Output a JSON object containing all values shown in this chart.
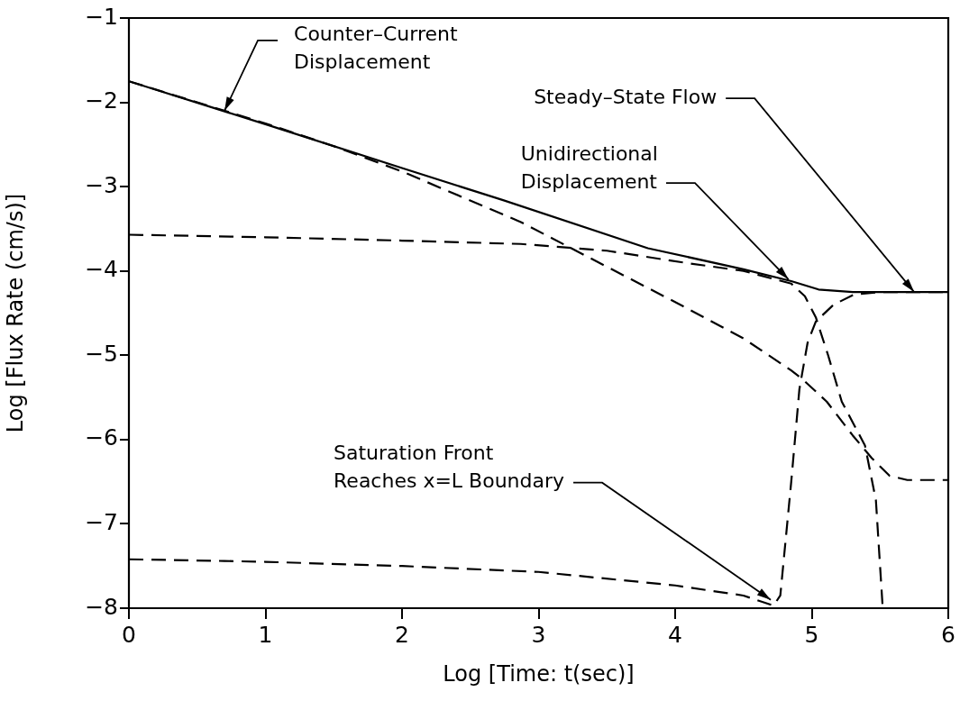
{
  "chart_data": {
    "type": "line",
    "xlabel": "Log [Time: t(sec)]",
    "ylabel": "Log [Flux Rate (cm/s)]",
    "annotations": [
      {
        "text": "Counter–Current\nDisplacement",
        "x": 0.7,
        "y": -2.1
      },
      {
        "text": "Steady–State Flow",
        "x": 5.75,
        "y": -4.25
      },
      {
        "text": "Unidirectional\nDisplacement",
        "x": 4.83,
        "y": -4.1
      },
      {
        "text": "Saturation Front\nReaches x=L Boundary",
        "x": 4.7,
        "y": -7.9
      }
    ],
    "xlim": [
      0,
      6
    ],
    "xticks": [
      0,
      1,
      2,
      3,
      4,
      5,
      6
    ],
    "ylim": [
      -8,
      -1
    ],
    "yticks": [
      -8,
      -7,
      -6,
      -5,
      -4,
      -3,
      -2,
      -1
    ],
    "marker": "none",
    "series": [
      {
        "color": "#000000",
        "line_style": "solid",
        "x": [
          0,
          1,
          2,
          2.74,
          3.8,
          4.5,
          4.85,
          5.05,
          5.3,
          6
        ],
        "values": [
          -1.75,
          -2.26,
          -2.78,
          -3.16,
          -3.73,
          -3.98,
          -4.12,
          -4.22,
          -4.25,
          -4.25
        ]
      },
      {
        "color": "#000000",
        "line_style": "dashed",
        "x": [
          0,
          1,
          1.5,
          2,
          2.87,
          3.5,
          4.06,
          4.5,
          4.85,
          4.93,
          5.11,
          5.3,
          5.44,
          5.57,
          5.7,
          6
        ],
        "values": [
          -1.75,
          -2.25,
          -2.52,
          -2.82,
          -3.42,
          -3.95,
          -4.42,
          -4.8,
          -5.18,
          -5.28,
          -5.55,
          -5.95,
          -6.22,
          -6.43,
          -6.48,
          -6.48
        ]
      },
      {
        "color": "#000000",
        "line_style": "dashed",
        "x": [
          0,
          1,
          2,
          2.87,
          3.5,
          4.06,
          4.5,
          4.85,
          4.95,
          5.03,
          5.12,
          5.22,
          5.39,
          5.47,
          5.52
        ],
        "values": [
          -3.57,
          -3.6,
          -3.64,
          -3.68,
          -3.76,
          -3.9,
          -4.0,
          -4.15,
          -4.3,
          -4.55,
          -5.0,
          -5.55,
          -6.07,
          -6.72,
          -8
        ]
      },
      {
        "color": "#000000",
        "line_style": "dashed",
        "x": [
          0,
          0.7,
          1,
          2,
          3,
          4,
          4.5,
          4.72,
          4.77,
          4.85,
          4.91,
          4.97,
          5.03,
          5.16,
          5.31,
          5.5,
          6
        ],
        "values": [
          -7.42,
          -7.44,
          -7.45,
          -7.5,
          -7.57,
          -7.73,
          -7.85,
          -7.97,
          -7.85,
          -6.5,
          -5.4,
          -4.85,
          -4.6,
          -4.4,
          -4.28,
          -4.25,
          -4.25
        ]
      }
    ]
  }
}
